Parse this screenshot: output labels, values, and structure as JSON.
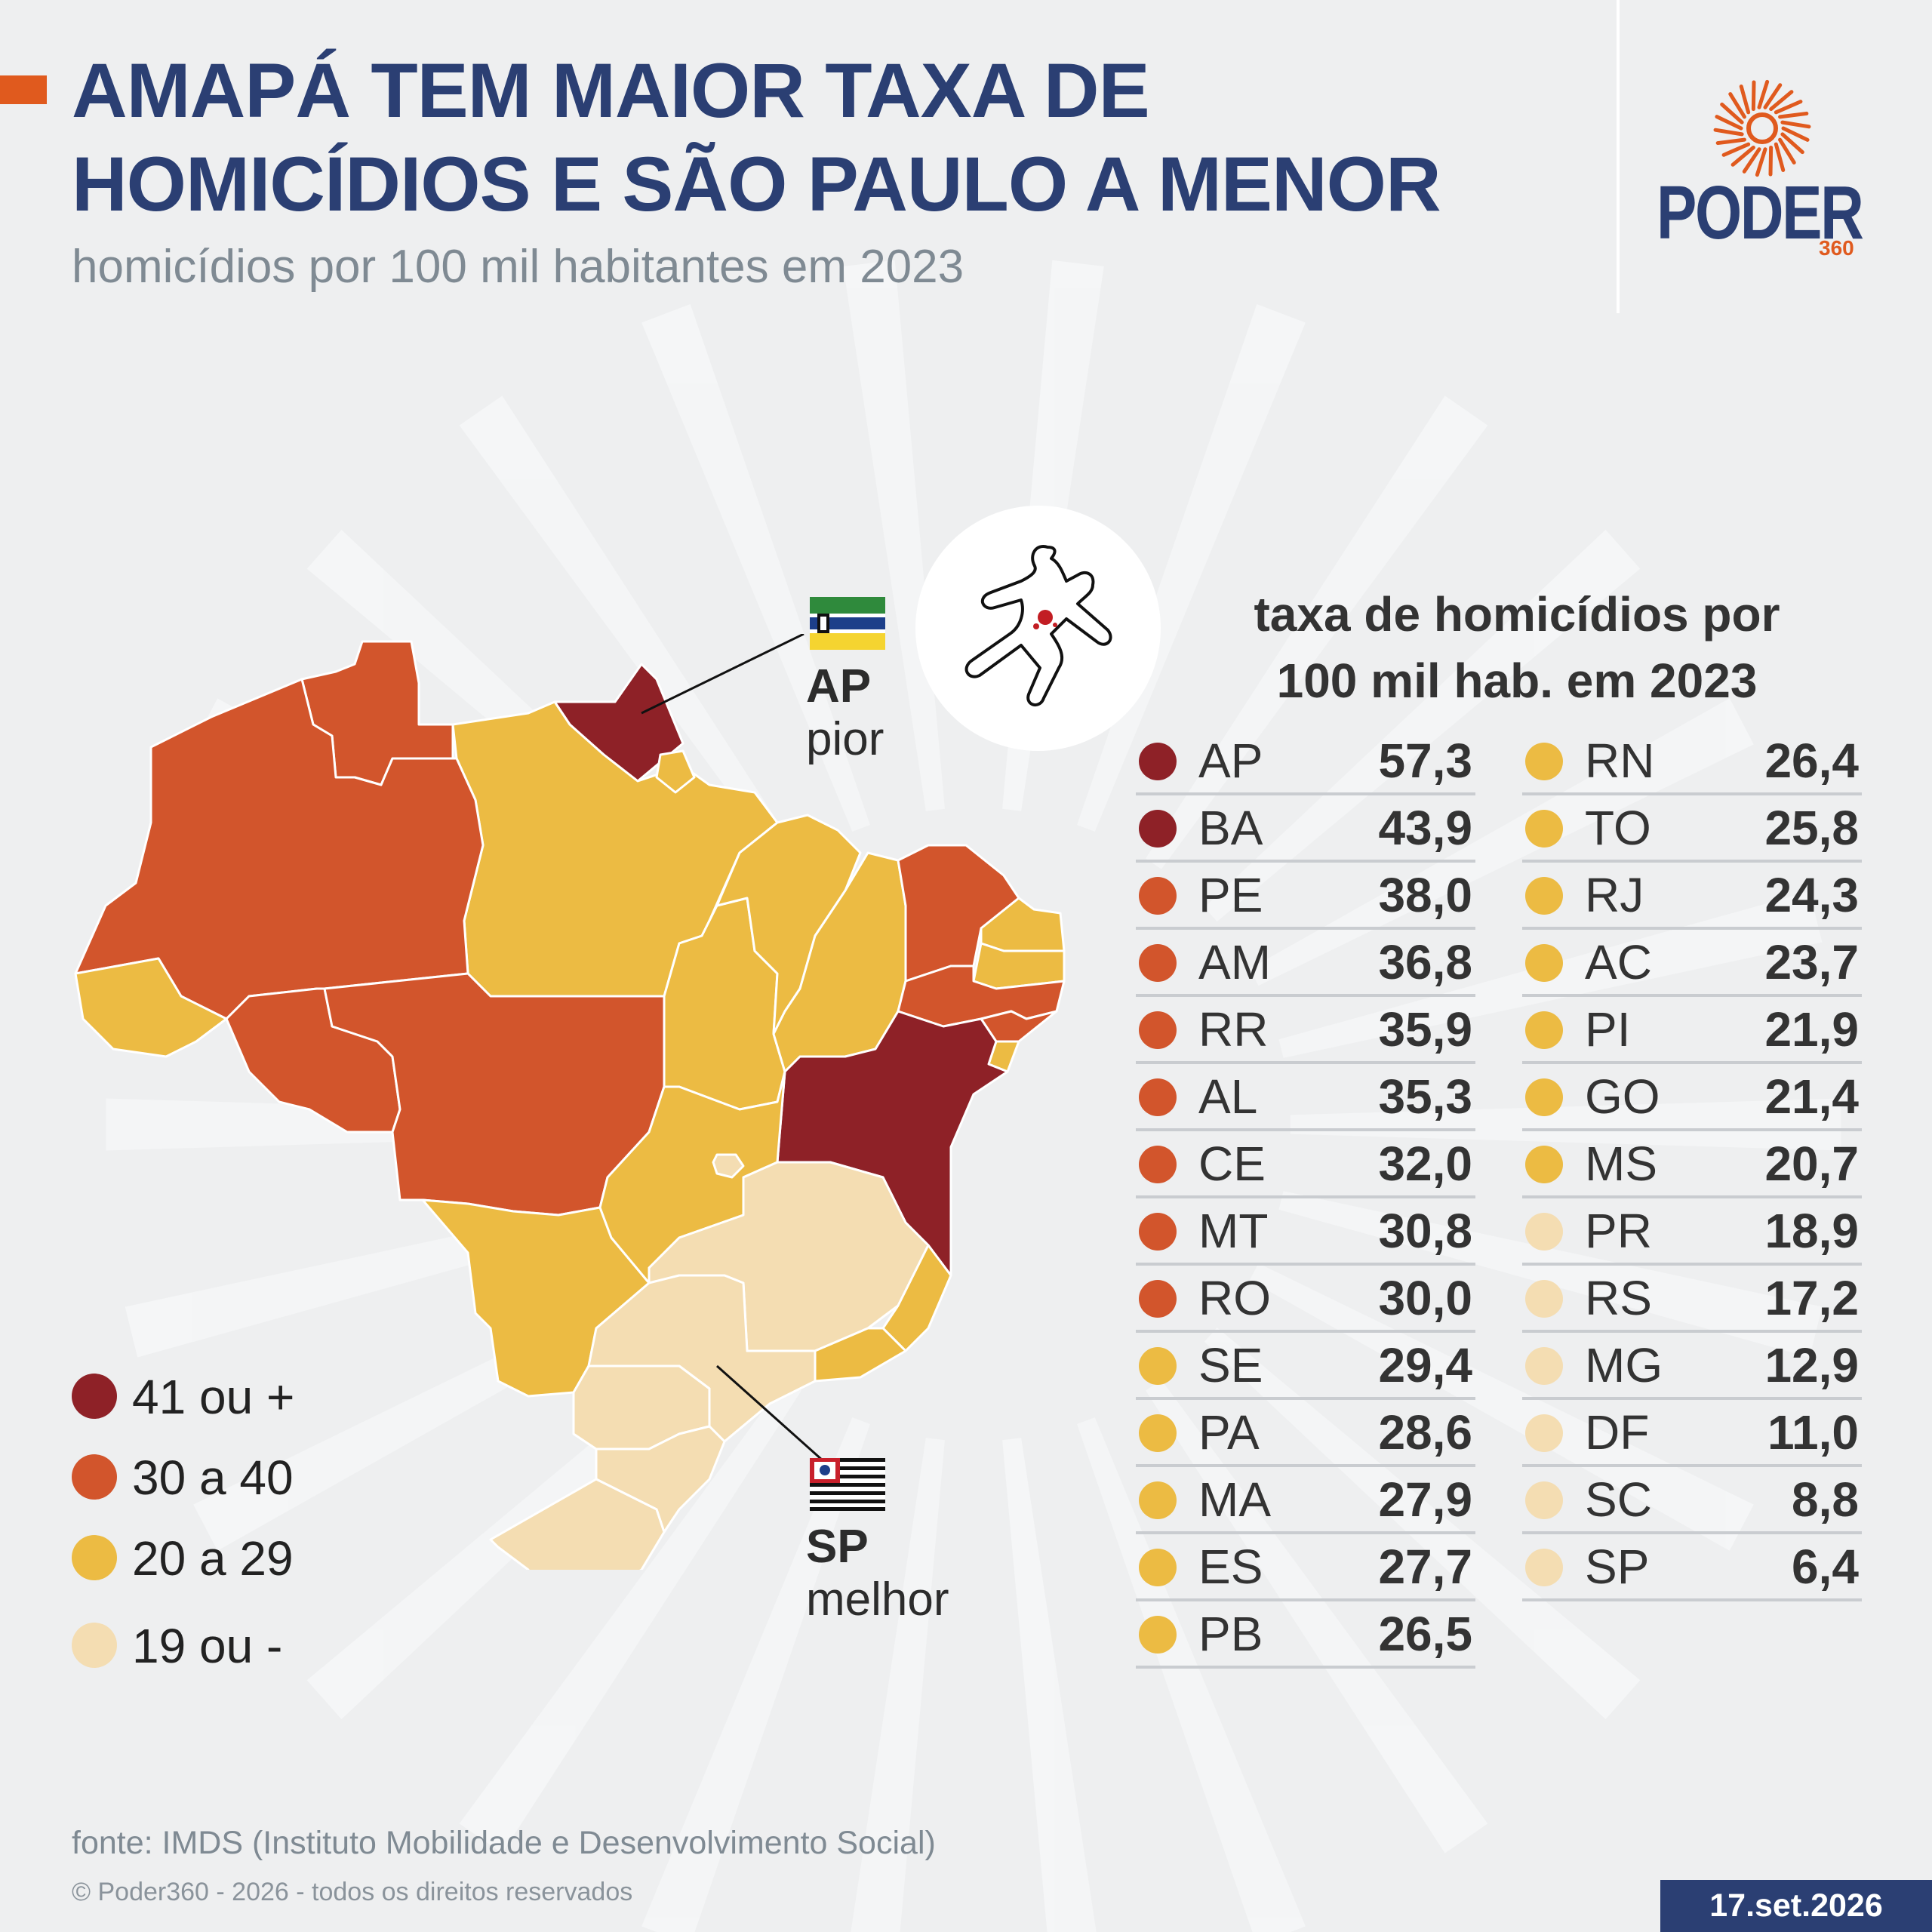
{
  "header": {
    "title_line1": "AMAPÁ TEM MAIOR TAXA DE",
    "title_line2": "HOMICÍDIOS E SÃO PAULO A MENOR",
    "subtitle": "homicídios por 100 mil habitantes em 2023"
  },
  "logo": {
    "word": "PODER",
    "number": "360"
  },
  "colors": {
    "accent": "#e05a1e",
    "navy": "#2b3f73",
    "cat_41_plus": "#8e2127",
    "cat_30_40": "#d2552c",
    "cat_20_29": "#ecbb43",
    "cat_19_minus": "#f4ddb2"
  },
  "callouts": {
    "ap": {
      "uf": "AP",
      "label": "pior"
    },
    "sp": {
      "uf": "SP",
      "label": "melhor"
    }
  },
  "legend": [
    {
      "label": "41 ou +",
      "color": "#8e2127"
    },
    {
      "label": "30 a 40",
      "color": "#d2552c"
    },
    {
      "label": "20 a 29",
      "color": "#ecbb43"
    },
    {
      "label": "19 ou -",
      "color": "#f4ddb2"
    }
  ],
  "table": {
    "title_line1": "taxa de homicídios por",
    "title_line2": "100 mil hab. em 2023",
    "left": [
      {
        "uf": "AP",
        "value": "57,3",
        "color": "#8e2127"
      },
      {
        "uf": "BA",
        "value": "43,9",
        "color": "#8e2127"
      },
      {
        "uf": "PE",
        "value": "38,0",
        "color": "#d2552c"
      },
      {
        "uf": "AM",
        "value": "36,8",
        "color": "#d2552c"
      },
      {
        "uf": "RR",
        "value": "35,9",
        "color": "#d2552c"
      },
      {
        "uf": "AL",
        "value": "35,3",
        "color": "#d2552c"
      },
      {
        "uf": "CE",
        "value": "32,0",
        "color": "#d2552c"
      },
      {
        "uf": "MT",
        "value": "30,8",
        "color": "#d2552c"
      },
      {
        "uf": "RO",
        "value": "30,0",
        "color": "#d2552c"
      },
      {
        "uf": "SE",
        "value": "29,4",
        "color": "#ecbb43"
      },
      {
        "uf": "PA",
        "value": "28,6",
        "color": "#ecbb43"
      },
      {
        "uf": "MA",
        "value": "27,9",
        "color": "#ecbb43"
      },
      {
        "uf": "ES",
        "value": "27,7",
        "color": "#ecbb43"
      },
      {
        "uf": "PB",
        "value": "26,5",
        "color": "#ecbb43"
      }
    ],
    "right": [
      {
        "uf": "RN",
        "value": "26,4",
        "color": "#ecbb43"
      },
      {
        "uf": "TO",
        "value": "25,8",
        "color": "#ecbb43"
      },
      {
        "uf": "RJ",
        "value": "24,3",
        "color": "#ecbb43"
      },
      {
        "uf": "AC",
        "value": "23,7",
        "color": "#ecbb43"
      },
      {
        "uf": "PI",
        "value": "21,9",
        "color": "#ecbb43"
      },
      {
        "uf": "GO",
        "value": "21,4",
        "color": "#ecbb43"
      },
      {
        "uf": "MS",
        "value": "20,7",
        "color": "#ecbb43"
      },
      {
        "uf": "PR",
        "value": "18,9",
        "color": "#f4ddb2"
      },
      {
        "uf": "RS",
        "value": "17,2",
        "color": "#f4ddb2"
      },
      {
        "uf": "MG",
        "value": "12,9",
        "color": "#f4ddb2"
      },
      {
        "uf": "DF",
        "value": "11,0",
        "color": "#f4ddb2"
      },
      {
        "uf": "SC",
        "value": "8,8",
        "color": "#f4ddb2"
      },
      {
        "uf": "SP",
        "value": "6,4",
        "color": "#f4ddb2"
      }
    ]
  },
  "footer": {
    "source": "fonte: IMDS (Instituto Mobilidade e Desenvolvimento Social)",
    "copyright": "© Poder360 - 2026 - todos os direitos reservados",
    "date": "17.set.2026"
  }
}
